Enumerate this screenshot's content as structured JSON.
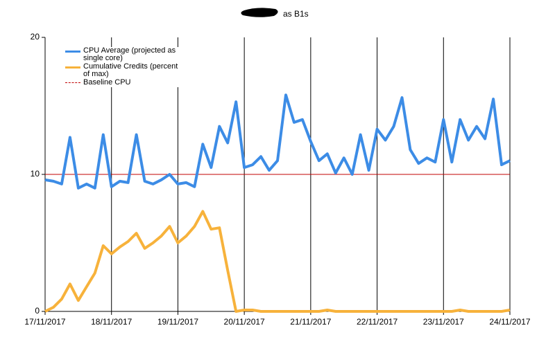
{
  "chart_data": {
    "type": "line",
    "title": "as B1s",
    "x": [
      "2017-11-17T00:00",
      "2017-11-17T03:00",
      "2017-11-17T06:00",
      "2017-11-17T09:00",
      "2017-11-17T12:00",
      "2017-11-17T15:00",
      "2017-11-17T18:00",
      "2017-11-17T21:00",
      "2017-11-18T00:00",
      "2017-11-18T03:00",
      "2017-11-18T06:00",
      "2017-11-18T09:00",
      "2017-11-18T12:00",
      "2017-11-18T15:00",
      "2017-11-18T18:00",
      "2017-11-18T21:00",
      "2017-11-19T00:00",
      "2017-11-19T03:00",
      "2017-11-19T06:00",
      "2017-11-19T09:00",
      "2017-11-19T12:00",
      "2017-11-19T15:00",
      "2017-11-19T18:00",
      "2017-11-19T21:00",
      "2017-11-20T00:00",
      "2017-11-20T03:00",
      "2017-11-20T06:00",
      "2017-11-20T09:00",
      "2017-11-20T12:00",
      "2017-11-20T15:00",
      "2017-11-20T18:00",
      "2017-11-20T21:00",
      "2017-11-21T00:00",
      "2017-11-21T03:00",
      "2017-11-21T06:00",
      "2017-11-21T09:00",
      "2017-11-21T12:00",
      "2017-11-21T15:00",
      "2017-11-21T18:00",
      "2017-11-21T21:00",
      "2017-11-22T00:00",
      "2017-11-22T03:00",
      "2017-11-22T06:00",
      "2017-11-22T09:00",
      "2017-11-22T12:00",
      "2017-11-22T15:00",
      "2017-11-22T18:00",
      "2017-11-22T21:00",
      "2017-11-23T00:00",
      "2017-11-23T03:00",
      "2017-11-23T06:00",
      "2017-11-23T09:00",
      "2017-11-23T12:00",
      "2017-11-23T15:00",
      "2017-11-23T18:00",
      "2017-11-23T21:00",
      "2017-11-24T00:00"
    ],
    "series": [
      {
        "name": "CPU Average (projected as single core)",
        "color": "#3c8ce6",
        "values": [
          9.6,
          9.5,
          9.3,
          12.7,
          9.0,
          9.3,
          9.0,
          12.9,
          9.1,
          9.5,
          9.4,
          12.9,
          9.5,
          9.3,
          9.6,
          10.0,
          9.3,
          9.4,
          9.1,
          12.2,
          10.5,
          13.5,
          12.3,
          15.3,
          10.5,
          10.7,
          11.3,
          10.3,
          11.0,
          15.8,
          13.8,
          14.0,
          12.4,
          11.0,
          11.5,
          10.1,
          11.2,
          10.0,
          12.9,
          10.3,
          13.3,
          12.5,
          13.5,
          15.6,
          11.8,
          10.8,
          11.2,
          10.9,
          14.0,
          10.9,
          14.0,
          12.5,
          13.5,
          12.6,
          15.5,
          10.7,
          11.0
        ]
      },
      {
        "name": "Cumulative Credits (percent of max)",
        "color": "#f7b23b",
        "values": [
          0,
          0.3,
          0.9,
          2.0,
          0.8,
          1.8,
          2.8,
          4.8,
          4.2,
          4.7,
          5.1,
          5.7,
          4.6,
          5.0,
          5.5,
          6.2,
          5.0,
          5.5,
          6.2,
          7.3,
          6.0,
          6.1,
          3.0,
          0,
          0.1,
          0.1,
          0,
          0,
          0,
          0,
          0,
          0,
          0,
          0,
          0.1,
          0,
          0,
          0,
          0,
          0,
          0,
          0,
          0,
          0,
          0,
          0,
          0,
          0,
          0,
          0,
          0.1,
          0,
          0,
          0,
          0,
          0,
          0.1
        ]
      }
    ],
    "baseline": {
      "name": "Baseline CPU",
      "value": 10,
      "color": "#c00000"
    },
    "xlim": [
      "2017-11-17",
      "2017-11-24"
    ],
    "xticks": [
      {
        "value": "2017-11-17",
        "label": "17/11/2017"
      },
      {
        "value": "2017-11-18",
        "label": "18/11/2017"
      },
      {
        "value": "2017-11-19",
        "label": "19/11/2017"
      },
      {
        "value": "2017-11-20",
        "label": "20/11/2017"
      },
      {
        "value": "2017-11-21",
        "label": "21/11/2017"
      },
      {
        "value": "2017-11-22",
        "label": "22/11/2017"
      },
      {
        "value": "2017-11-23",
        "label": "23/11/2017"
      },
      {
        "value": "2017-11-24",
        "label": "24/11/2017"
      }
    ],
    "ylim": [
      0,
      20
    ],
    "yticks": [
      0,
      10,
      20
    ],
    "grid": true
  }
}
